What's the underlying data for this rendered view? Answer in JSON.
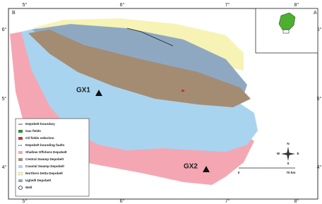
{
  "map": {
    "corner_labels": [
      "A",
      "B"
    ],
    "top_ticks": [
      "5°",
      "6°",
      "7°",
      "8°"
    ],
    "bottom_ticks": [
      "5°",
      "6°",
      "7°",
      "8°"
    ],
    "left_ticks": [
      "6°",
      "5°",
      "4°"
    ],
    "right_ticks": [
      "6°",
      "5°",
      "4°"
    ],
    "wells": [
      "GX1",
      "GX2"
    ],
    "legend": [
      "Depobelt boundary",
      "Gas fields",
      "Oil fields selection",
      "Depobelt bounding faults",
      "Shallow Offshore Depobelt",
      "Central Swamp Depobelt",
      "Coastal Swamp Depobelt",
      "Northern Delta Depobelt",
      "Ughelli Depobelt",
      "Well"
    ],
    "scale": [
      "0",
      "70 km"
    ],
    "compass": [
      "N",
      "S",
      "E",
      "W"
    ]
  }
}
